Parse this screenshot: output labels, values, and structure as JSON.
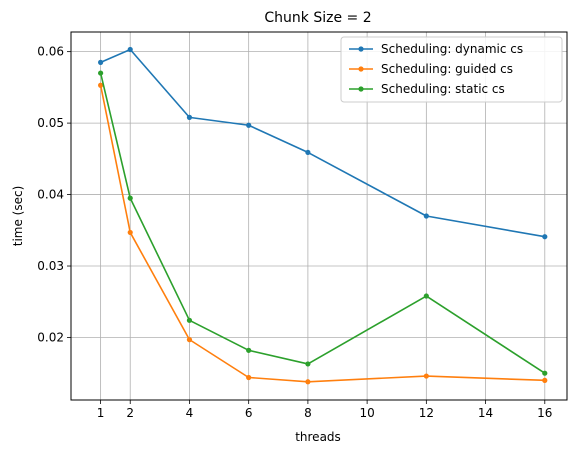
{
  "chart_data": {
    "type": "line",
    "title": "Chunk Size = 2",
    "xlabel": "threads",
    "ylabel": "time (sec)",
    "xlim": [
      0.0,
      16.75
    ],
    "ylim": [
      0.01125,
      0.06275
    ],
    "xticks": [
      1,
      2,
      4,
      6,
      8,
      10,
      12,
      14,
      16
    ],
    "yticks": [
      0.02,
      0.03,
      0.04,
      0.05,
      0.06
    ],
    "ytick_labels": [
      "0.02",
      "0.03",
      "0.04",
      "0.05",
      "0.06"
    ],
    "grid": true,
    "legend_position": "top-right",
    "x": [
      1,
      2,
      4,
      6,
      8,
      12,
      16
    ],
    "series": [
      {
        "name": "Scheduling: dynamic cs",
        "color": "#1f77b4",
        "values": [
          0.0585,
          0.0603,
          0.0508,
          0.0497,
          0.0459,
          0.037,
          0.0341
        ]
      },
      {
        "name": "Scheduling: guided cs",
        "color": "#ff7f0e",
        "values": [
          0.0553,
          0.0347,
          0.0197,
          0.0144,
          0.0138,
          0.0146,
          0.014
        ]
      },
      {
        "name": "Scheduling: static cs",
        "color": "#2ca02c",
        "values": [
          0.057,
          0.0395,
          0.0224,
          0.0182,
          0.0163,
          0.0258,
          0.015
        ]
      }
    ]
  }
}
